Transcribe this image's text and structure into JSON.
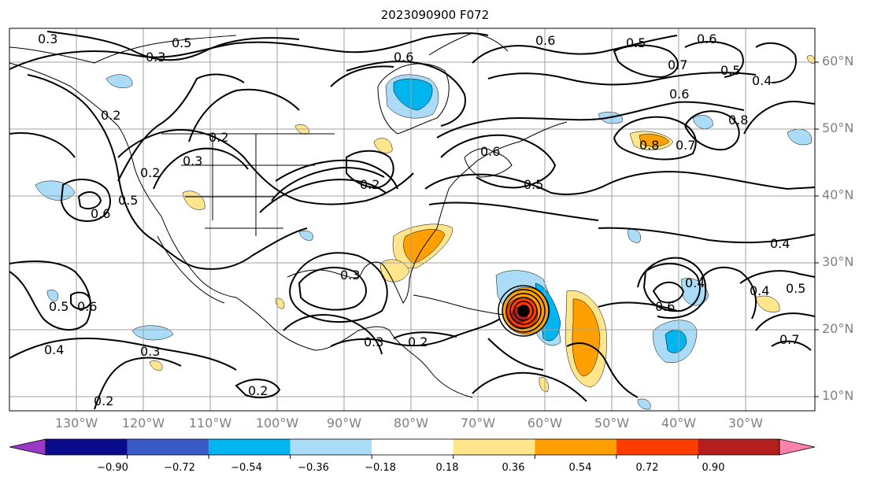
{
  "title": "2023090900 F072",
  "lon_labels": [
    "130°W",
    "120°W",
    "110°W",
    "100°W",
    "90°W",
    "80°W",
    "70°W",
    "60°W",
    "50°W",
    "40°W",
    "30°W"
  ],
  "lat_labels": [
    "60°N",
    "50°N",
    "40°N",
    "30°N",
    "20°N",
    "10°N"
  ],
  "colorbar": {
    "ticks": [
      "−0.90",
      "−0.72",
      "−0.54",
      "−0.36",
      "−0.18",
      "0.18",
      "0.36",
      "0.54",
      "0.72",
      "0.90"
    ],
    "colors": [
      "#9a39c8",
      "#0a0a8c",
      "#3a5ac8",
      "#00b4f0",
      "#aadcf8",
      "#ffffff",
      "#ffe68c",
      "#ffa000",
      "#ff3c00",
      "#b41e1e",
      "#ff82aa"
    ]
  },
  "contour_labels": [
    "0.3",
    "0.5",
    "0.3",
    "0.6",
    "0.6",
    "0.5",
    "0.6",
    "0.5",
    "0.7",
    "0.6",
    "0.4",
    "0.8",
    "0.8",
    "0.7",
    "0.2",
    "0.2",
    "0.2",
    "0.3",
    "0.2",
    "0.6",
    "0.5",
    "0.6",
    "0.5",
    "0.4",
    "0.3",
    "0.6",
    "0.5",
    "0.4",
    "0.3",
    "0.2",
    "0.2",
    "0.2",
    "0.6",
    "0.4",
    "0.5",
    "0.4",
    "0.7",
    "0.3"
  ],
  "colors": {
    "coast": "#000000",
    "contour": "#000000",
    "grid": "#a0a0a0"
  }
}
